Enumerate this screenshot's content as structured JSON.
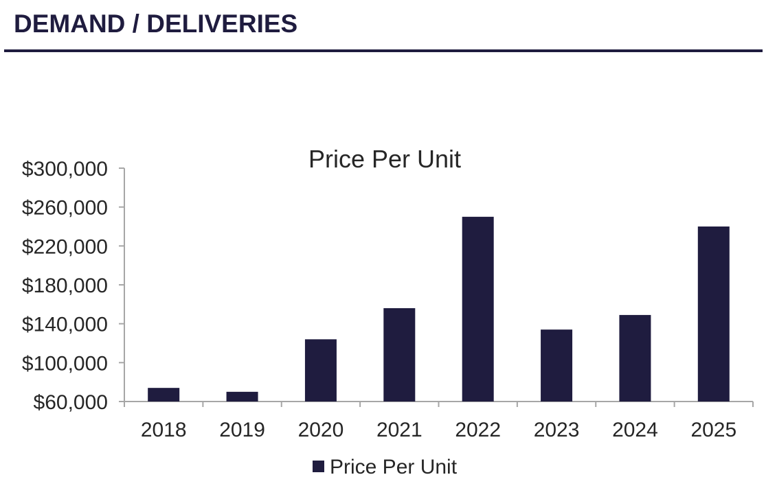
{
  "page": {
    "title": "DEMAND / DELIVERIES"
  },
  "colors": {
    "bar": "#1f1c3f",
    "axis": "#a6a6a6",
    "header": "#1f1c3f",
    "text": "#262626"
  },
  "chart_data": {
    "type": "bar",
    "title": "Price Per Unit",
    "xlabel": "",
    "ylabel": "",
    "categories": [
      "2018",
      "2019",
      "2020",
      "2021",
      "2022",
      "2023",
      "2024",
      "2025"
    ],
    "series": [
      {
        "name": "Price Per Unit",
        "values": [
          74000,
          70000,
          124000,
          156000,
          250000,
          134000,
          149000,
          240000
        ]
      }
    ],
    "ylim": [
      60000,
      300000
    ],
    "yticks": [
      60000,
      100000,
      140000,
      180000,
      220000,
      260000,
      300000
    ],
    "ytick_labels": [
      "$60,000",
      "$100,000",
      "$140,000",
      "$180,000",
      "$220,000",
      "$260,000",
      "$300,000"
    ],
    "grid": false,
    "legend_position": "bottom"
  }
}
